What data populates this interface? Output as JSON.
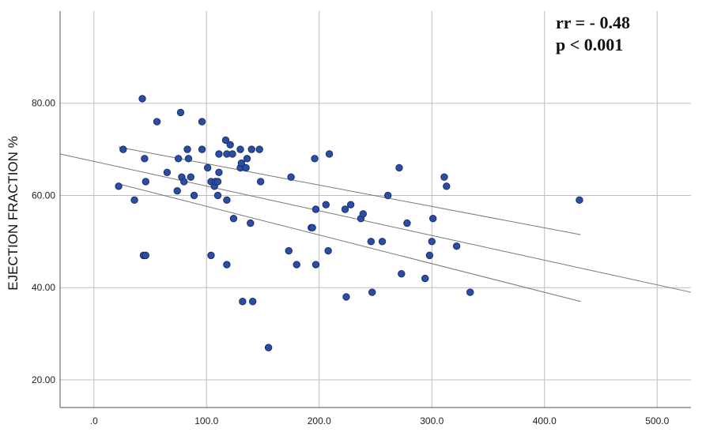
{
  "chart_data": {
    "type": "scatter",
    "title": "",
    "xlabel": "",
    "ylabel": "EJECTION FRACTION %",
    "xlim": [
      -30,
      530
    ],
    "ylim": [
      14,
      100
    ],
    "x_ticks": [
      0,
      100,
      200,
      300,
      400,
      500
    ],
    "x_tick_labels": [
      ".0",
      "100.0",
      "200.0",
      "300.0",
      "400.0",
      "500.0"
    ],
    "y_ticks": [
      20,
      40,
      60,
      80
    ],
    "y_tick_labels": [
      "20.00",
      "40.00",
      "60.00",
      "80.00"
    ],
    "grid": true,
    "annotations": [
      "rr = - 0.48",
      "p < 0.001"
    ],
    "point_color": "#2a4ea3",
    "point_edge_color": "#1b2f6e",
    "line_color": "#777777",
    "points": [
      [
        43,
        81
      ],
      [
        56,
        76
      ],
      [
        77,
        78
      ],
      [
        96,
        76
      ],
      [
        26,
        70
      ],
      [
        45,
        68
      ],
      [
        65,
        65
      ],
      [
        75,
        68
      ],
      [
        78,
        64
      ],
      [
        80,
        63
      ],
      [
        83,
        70
      ],
      [
        84,
        68
      ],
      [
        86,
        64
      ],
      [
        74,
        61
      ],
      [
        89,
        60
      ],
      [
        96,
        70
      ],
      [
        101,
        66
      ],
      [
        104,
        63
      ],
      [
        107,
        62
      ],
      [
        108,
        63
      ],
      [
        110,
        63
      ],
      [
        110,
        60
      ],
      [
        111,
        65
      ],
      [
        111,
        69
      ],
      [
        117,
        72
      ],
      [
        118,
        69
      ],
      [
        118,
        59
      ],
      [
        121,
        71
      ],
      [
        123,
        69
      ],
      [
        130,
        70
      ],
      [
        130,
        66
      ],
      [
        131,
        67
      ],
      [
        135,
        66
      ],
      [
        136,
        68
      ],
      [
        140,
        70
      ],
      [
        147,
        70
      ],
      [
        148,
        63
      ],
      [
        22,
        62
      ],
      [
        36,
        59
      ],
      [
        46,
        63
      ],
      [
        44,
        47
      ],
      [
        46,
        47
      ],
      [
        104,
        47
      ],
      [
        118,
        45
      ],
      [
        124,
        55
      ],
      [
        139,
        54
      ],
      [
        132,
        37
      ],
      [
        141,
        37
      ],
      [
        155,
        27
      ],
      [
        173,
        48
      ],
      [
        175,
        64
      ],
      [
        180,
        45
      ],
      [
        193,
        53
      ],
      [
        194,
        53
      ],
      [
        196,
        68
      ],
      [
        197,
        57
      ],
      [
        197,
        45
      ],
      [
        206,
        58
      ],
      [
        208,
        48
      ],
      [
        209,
        69
      ],
      [
        223,
        57
      ],
      [
        224,
        38
      ],
      [
        228,
        58
      ],
      [
        237,
        55
      ],
      [
        239,
        56
      ],
      [
        246,
        50
      ],
      [
        247,
        39
      ],
      [
        256,
        50
      ],
      [
        261,
        60
      ],
      [
        271,
        66
      ],
      [
        273,
        43
      ],
      [
        278,
        54
      ],
      [
        294,
        42
      ],
      [
        298,
        47
      ],
      [
        300,
        50
      ],
      [
        301,
        55
      ],
      [
        311,
        64
      ],
      [
        313,
        62
      ],
      [
        322,
        49
      ],
      [
        334,
        39
      ],
      [
        431,
        59
      ]
    ],
    "fit_line": {
      "x": [
        -30,
        530
      ],
      "y": [
        69,
        39
      ]
    },
    "ci_upper": {
      "x": [
        22,
        432
      ],
      "y": [
        70.5,
        51.5
      ]
    },
    "ci_lower": {
      "x": [
        22,
        432
      ],
      "y": [
        62.5,
        37
      ]
    }
  }
}
